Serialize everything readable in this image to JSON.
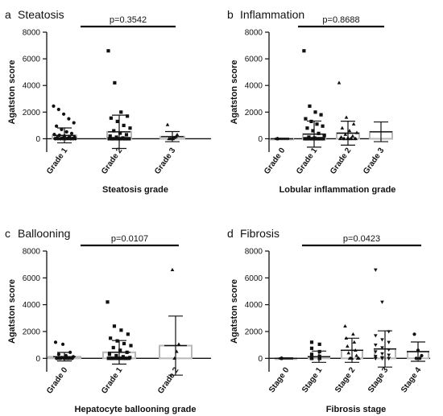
{
  "figure": {
    "colors": {
      "axis": "#111111",
      "bar": "#b8b8b8",
      "errorbar": "#111111",
      "points": "#111111"
    }
  },
  "chart_data": [
    {
      "id": "a",
      "panel_letter": "a",
      "title": "Steatosis",
      "type": "scatter",
      "xlabel": "Steatosis grade",
      "ylabel": "Agatston score",
      "ylim": [
        -1000,
        8000
      ],
      "yticks": [
        0,
        2000,
        4000,
        6000,
        8000
      ],
      "categories": [
        "Grade 1",
        "Grade 2",
        "Grade 3"
      ],
      "bar_means": [
        250,
        520,
        160
      ],
      "sd": [
        560,
        1250,
        380
      ],
      "marker": [
        "circle",
        "square",
        "triangle"
      ],
      "points": [
        [
          2450,
          2200,
          1850,
          1500,
          1200,
          950,
          700,
          520,
          400,
          320,
          260,
          210,
          160,
          120,
          80,
          50,
          30,
          20,
          10,
          0,
          0,
          0,
          0,
          0,
          0,
          0,
          0,
          0,
          0,
          0,
          0
        ],
        [
          6600,
          4200,
          2000,
          1700,
          1550,
          1300,
          1000,
          800,
          600,
          420,
          300,
          200,
          120,
          60,
          0,
          0,
          0,
          0,
          0,
          0,
          0,
          0,
          0,
          0,
          0
        ],
        [
          1050,
          300,
          150,
          80,
          0,
          0,
          0,
          0
        ]
      ],
      "pvalue": "p=0.3542"
    },
    {
      "id": "b",
      "panel_letter": "b",
      "title": "Inflammation",
      "type": "scatter",
      "xlabel": "Lobular inflammation grade",
      "ylabel": "Agatston score",
      "ylim": [
        -1000,
        8000
      ],
      "yticks": [
        0,
        2000,
        4000,
        6000,
        8000
      ],
      "categories": [
        "Grade 0",
        "Grade 1",
        "Grade 2",
        "Grade 3"
      ],
      "bar_means": [
        0,
        350,
        420,
        520
      ],
      "sd": [
        40,
        980,
        900,
        740
      ],
      "marker": [
        "circle",
        "square",
        "triangle",
        "none"
      ],
      "points": [
        [
          0,
          0,
          0,
          0,
          0,
          0,
          0
        ],
        [
          6600,
          2450,
          2000,
          1800,
          1500,
          1300,
          1100,
          950,
          800,
          600,
          400,
          250,
          120,
          60,
          0,
          0,
          0,
          0,
          0,
          0,
          0,
          0,
          0,
          0,
          0,
          0
        ],
        [
          4200,
          1600,
          1100,
          800,
          600,
          450,
          320,
          200,
          120,
          0,
          0,
          0,
          0,
          0,
          0,
          0,
          0,
          0
        ],
        []
      ],
      "pvalue": "p=0.8688"
    },
    {
      "id": "c",
      "panel_letter": "c",
      "title": "Ballooning",
      "type": "scatter",
      "xlabel": "Hepatocyte ballooning grade",
      "ylabel": "Agatston score",
      "ylim": [
        -1000,
        8000
      ],
      "yticks": [
        0,
        2000,
        4000,
        6000,
        8000
      ],
      "categories": [
        "Grade 0",
        "Grade 1",
        "Grade 2"
      ],
      "bar_means": [
        120,
        450,
        950
      ],
      "sd": [
        320,
        880,
        2200
      ],
      "marker": [
        "circle",
        "square",
        "triangle"
      ],
      "points": [
        [
          1200,
          1050,
          450,
          300,
          200,
          120,
          60,
          0,
          0,
          0,
          0,
          0,
          0,
          0,
          0,
          0,
          0,
          0
        ],
        [
          4200,
          2400,
          2100,
          1800,
          1500,
          1300,
          1100,
          950,
          800,
          600,
          450,
          300,
          200,
          120,
          60,
          0,
          0,
          0,
          0,
          0,
          0,
          0,
          0,
          0,
          0
        ],
        [
          6600,
          1050,
          500,
          0
        ]
      ],
      "pvalue": "p=0.0107"
    },
    {
      "id": "d",
      "panel_letter": "d",
      "title": "Fibrosis",
      "type": "scatter",
      "xlabel": "Fibrosis stage",
      "ylabel": "Agatston score",
      "ylim": [
        -1000,
        8000
      ],
      "yticks": [
        0,
        2000,
        4000,
        6000,
        8000
      ],
      "categories": [
        "Stage 0",
        "Stage 1",
        "Stage 2",
        "Stage 3",
        "Stage 4"
      ],
      "bar_means": [
        0,
        120,
        600,
        700,
        500
      ],
      "sd": [
        40,
        420,
        900,
        1350,
        720
      ],
      "marker": [
        "circle",
        "square",
        "triangle",
        "triangle-down",
        "circle"
      ],
      "points": [
        [
          0,
          0,
          0,
          0,
          0,
          0,
          0
        ],
        [
          1200,
          1050,
          750,
          500,
          300,
          150,
          60,
          0,
          0,
          0,
          0,
          0,
          0,
          0
        ],
        [
          2400,
          1800,
          1500,
          1200,
          900,
          600,
          400,
          200,
          0,
          0,
          0,
          0,
          0
        ],
        [
          6600,
          4200,
          2000,
          1700,
          1400,
          1200,
          1000,
          800,
          650,
          500,
          350,
          250,
          150,
          60,
          0,
          0,
          0,
          0,
          0,
          0,
          0
        ],
        [
          1800,
          600,
          200,
          0,
          0
        ]
      ],
      "pvalue": "p=0.0423"
    }
  ]
}
